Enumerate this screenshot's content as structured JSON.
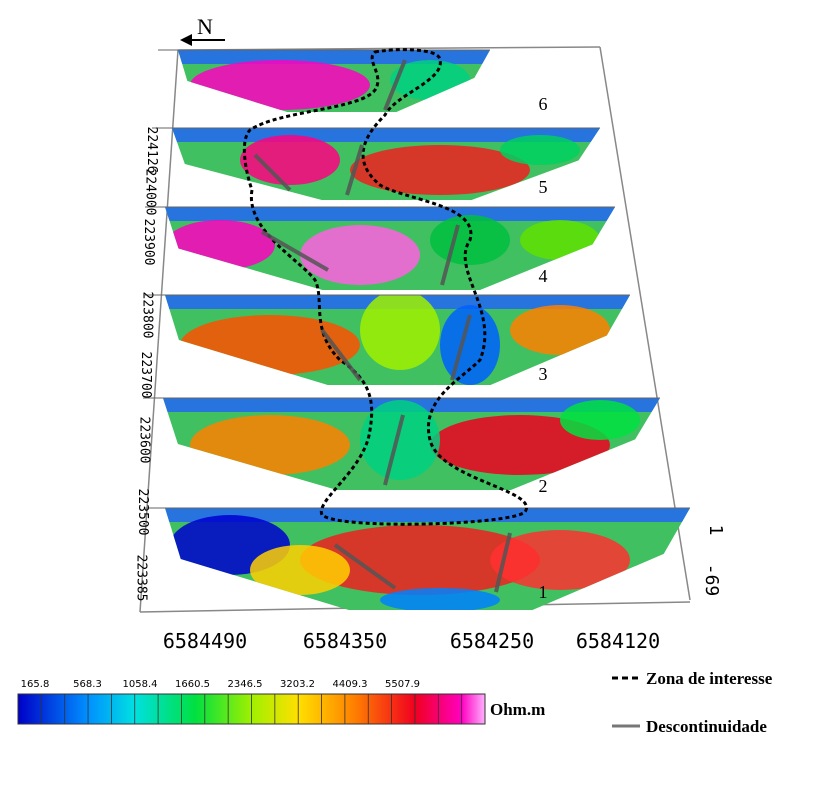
{
  "north": "N",
  "section_labels": [
    "1",
    "2",
    "3",
    "4",
    "5",
    "6"
  ],
  "y_axis_labels": [
    "224126",
    "224000",
    "223900",
    "223800",
    "223700",
    "223600",
    "223500",
    "223385"
  ],
  "x_axis_labels": [
    "6584490",
    "6584350",
    "6584250",
    "6584120"
  ],
  "depth_labels": [
    "1",
    "-69"
  ],
  "colorbar": {
    "values": [
      165.8,
      568.3,
      1058.4,
      1660.5,
      2346.5,
      3203.2,
      4409.3,
      5507.9
    ],
    "unit": "Ohm.m"
  },
  "legend": [
    "Zona de interesse",
    "Descontinuidade"
  ]
}
